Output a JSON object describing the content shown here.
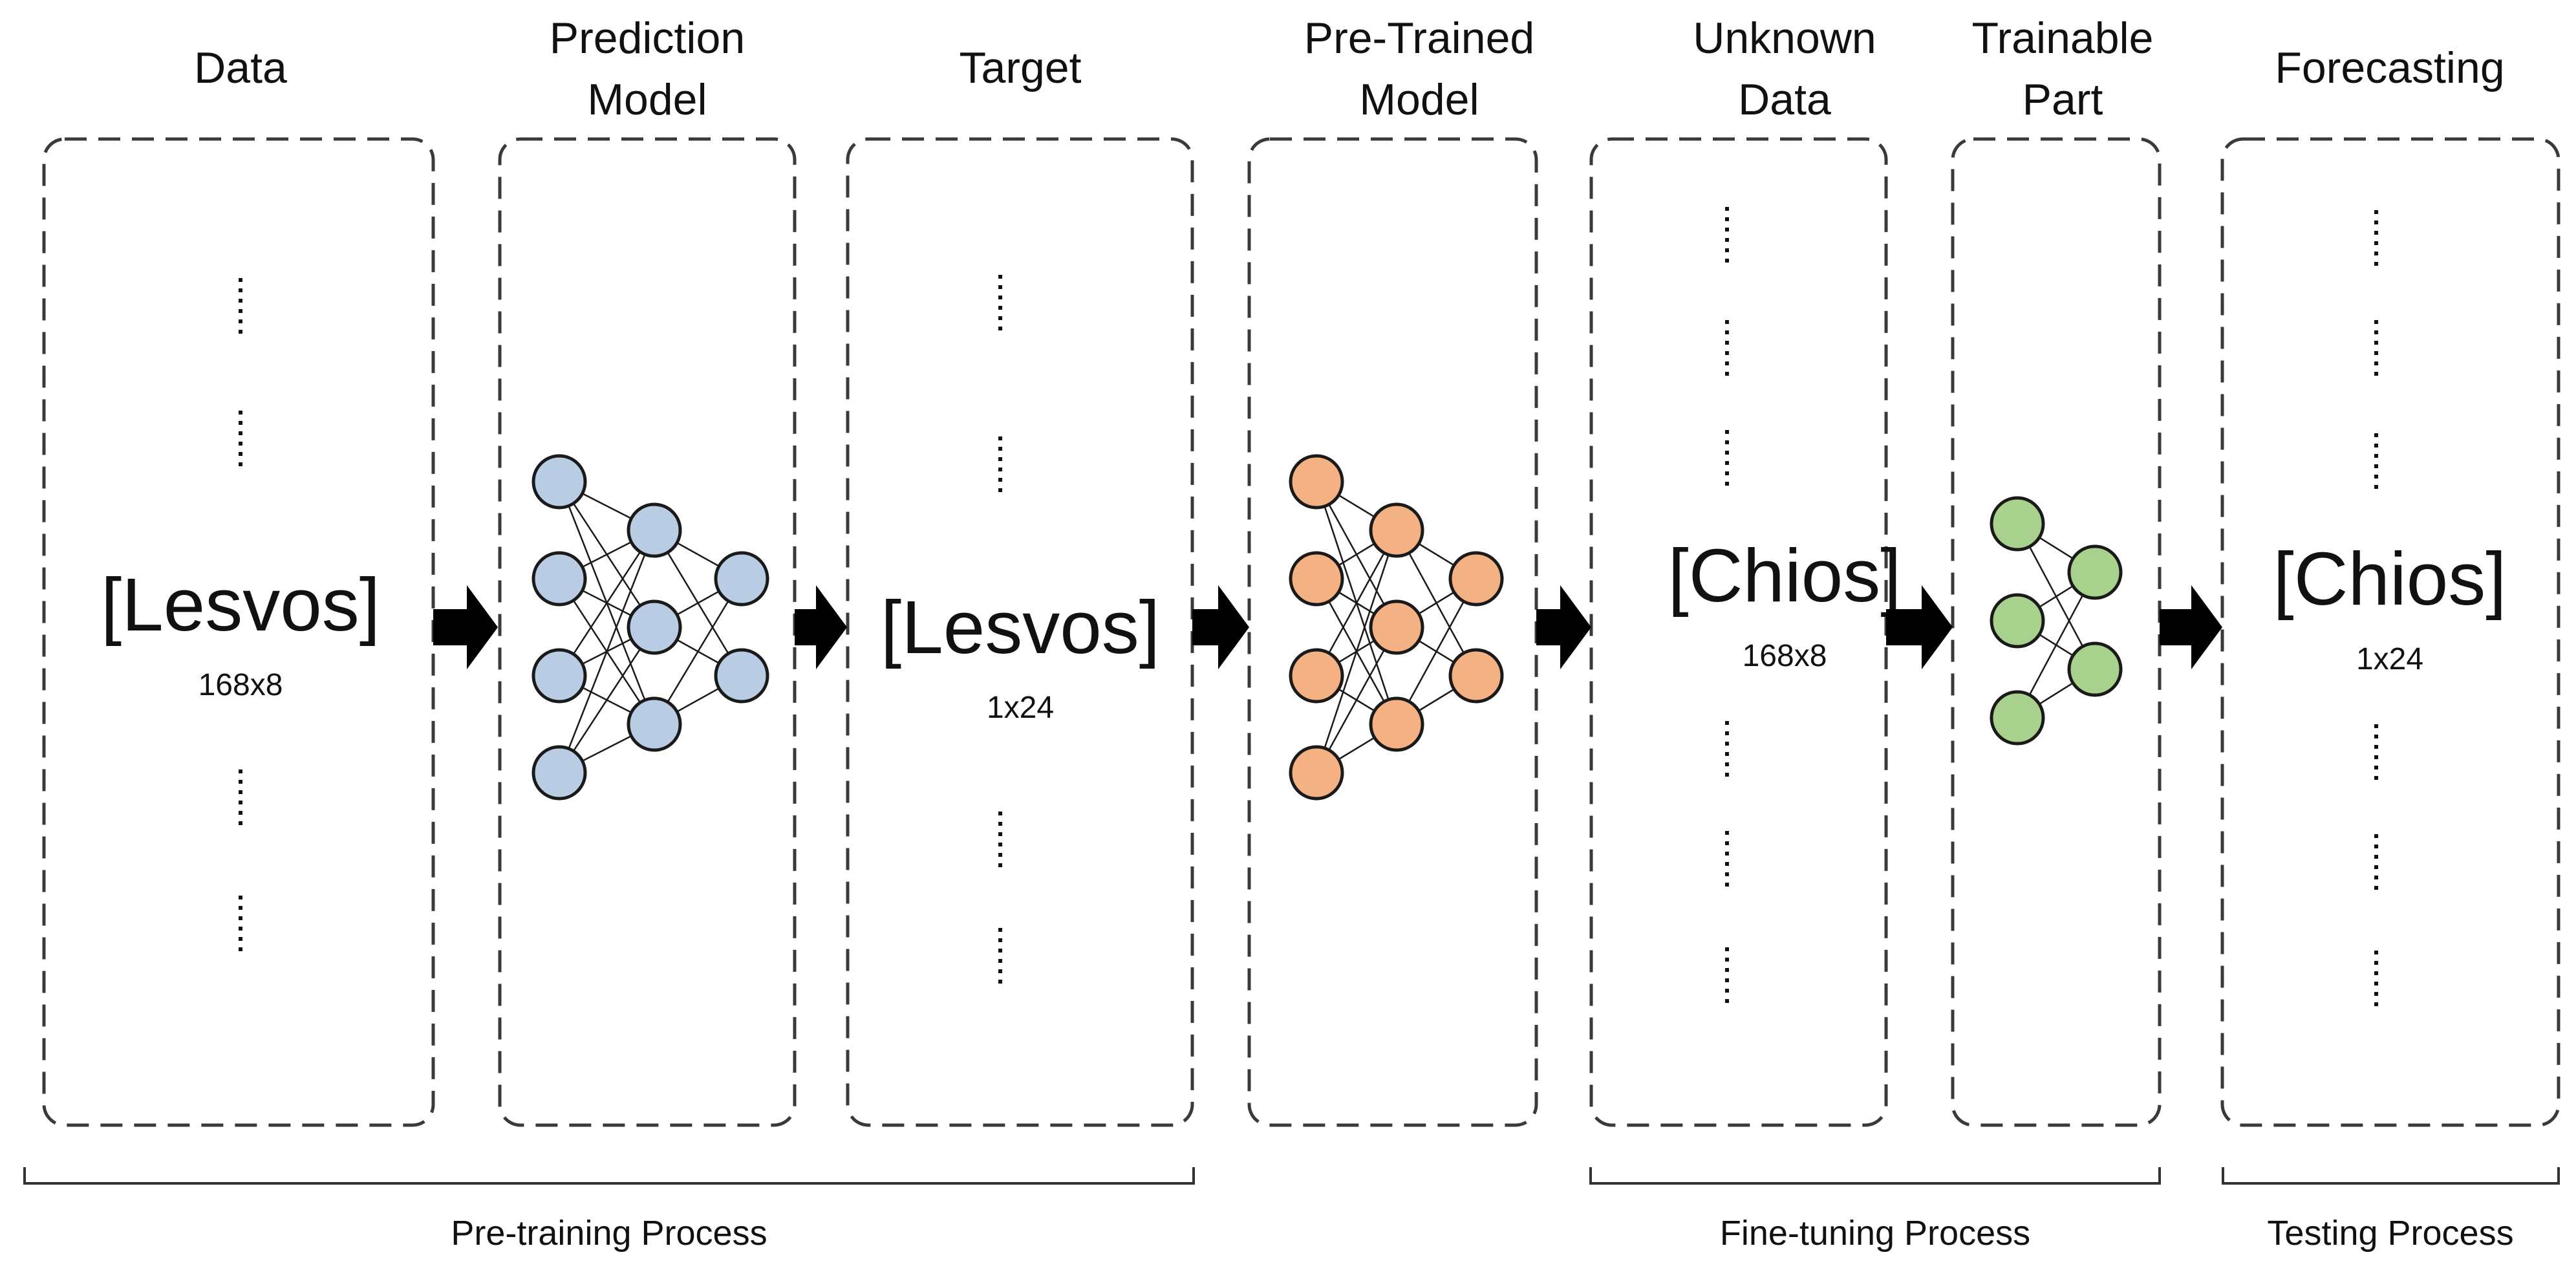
{
  "headers": {
    "data": "Data",
    "prediction_model": [
      "Prediction",
      "Model"
    ],
    "target": "Target",
    "pretrained_model": [
      "Pre-Trained",
      "Model"
    ],
    "unknown_data": [
      "Unknown",
      "Data"
    ],
    "trainable_part": [
      "Trainable",
      "Part"
    ],
    "forecasting": "Forecasting"
  },
  "boxes": {
    "lesvos_input": {
      "label": "[Lesvos]",
      "dims": "168x8"
    },
    "lesvos_target": {
      "label": "[Lesvos]",
      "dims": "1x24"
    },
    "chios_input": {
      "label": "[Chios]",
      "dims": "168x8"
    },
    "chios_forecast": {
      "label": "[Chios]",
      "dims": "1x24"
    }
  },
  "processes": {
    "pretraining": "Pre-training Process",
    "finetuning": "Fine-tuning Process",
    "testing": "Testing Process"
  },
  "networks": {
    "prediction": {
      "layers": [
        4,
        3,
        2
      ],
      "color": "#B8CCE4"
    },
    "pretrained": {
      "layers": [
        4,
        3,
        2
      ],
      "color": "#F4B183"
    },
    "trainable": {
      "layers": [
        3,
        2
      ],
      "color": "#A9D18E"
    }
  },
  "colors": {
    "node_stroke": "#1a1a1a",
    "box_stroke": "#3a3a3a",
    "arrow": "#000000"
  }
}
